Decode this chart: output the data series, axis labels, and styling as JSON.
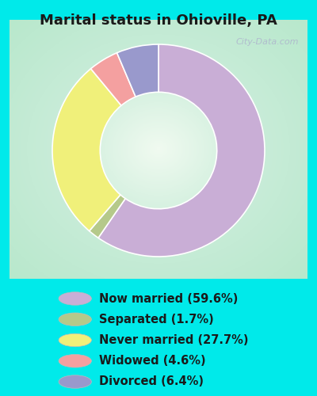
{
  "title": "Marital status in Ohioville, PA",
  "slices": [
    59.6,
    1.7,
    27.7,
    4.6,
    6.4
  ],
  "colors": [
    "#c9aed6",
    "#b5c98a",
    "#f0f07a",
    "#f4a0a0",
    "#9999cc"
  ],
  "labels": [
    "Now married (59.6%)",
    "Separated (1.7%)",
    "Never married (27.7%)",
    "Widowed (4.6%)",
    "Divorced (6.4%)"
  ],
  "bg_cyan": "#00eaea",
  "title_color": "#1a1a1a",
  "title_fontsize": 13,
  "legend_fontsize": 10.5,
  "watermark": "City-Data.com",
  "donut_width": 0.45,
  "start_angle": 90
}
